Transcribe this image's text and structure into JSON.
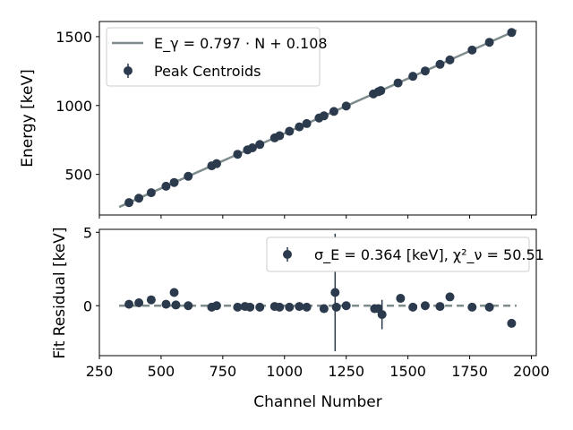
{
  "chart_data": [
    {
      "type": "scatter",
      "ylabel": "Energy [keV]",
      "xlim": [
        250,
        2020
      ],
      "ylim": [
        205,
        1610
      ],
      "xticks": [
        "250",
        "500",
        "750",
        "1000",
        "1250",
        "1500",
        "1750",
        "2000"
      ],
      "yticks": [
        "500",
        "1000",
        "1500"
      ],
      "ytick_values": [
        500,
        1000,
        1500
      ],
      "legend_position": "top-left",
      "legend": {
        "fit_label": "E_γ = 0.797 · N + 0.108",
        "points_label": "Peak Centroids"
      },
      "fit": {
        "slope": 0.797,
        "intercept": 0.108,
        "x_range": [
          330,
          1940
        ]
      },
      "series": [
        {
          "name": "Peak Centroids",
          "x": [
            370,
            410,
            460,
            520,
            553,
            610,
            705,
            725,
            810,
            850,
            870,
            900,
            960,
            980,
            1020,
            1060,
            1090,
            1140,
            1160,
            1200,
            1250,
            1360,
            1380,
            1390,
            1460,
            1520,
            1570,
            1630,
            1670,
            1760,
            1830,
            1920
          ],
          "y": [
            295,
            327,
            367,
            414,
            441,
            486,
            562,
            578,
            646,
            678,
            693,
            717,
            765,
            781,
            813,
            845,
            869,
            909,
            925,
            957,
            996,
            1084,
            1100,
            1108,
            1164,
            1212,
            1251,
            1299,
            1331,
            1403,
            1459,
            1530
          ]
        }
      ],
      "colors": {
        "points": "#2b3a4d",
        "fit": "#7f8c8d"
      }
    },
    {
      "type": "scatter",
      "xlabel": "Channel Number",
      "ylabel": "Fit Residual [keV]",
      "xlim": [
        250,
        2020
      ],
      "ylim": [
        -3.4,
        5.2
      ],
      "yticks": [
        "5",
        "0"
      ],
      "ytick_values": [
        5,
        0
      ],
      "legend_position": "top-right",
      "legend": {
        "points_label": "σ_E = 0.364 [keV], χ²_ν = 50.51"
      },
      "zero_line": {
        "y": 0,
        "x_range": [
          330,
          1940
        ],
        "style": "dashed"
      },
      "series": [
        {
          "name": "σ_E = 0.364 [keV], χ²_ν = 50.51",
          "x": [
            370,
            410,
            460,
            520,
            553,
            560,
            610,
            705,
            725,
            810,
            840,
            860,
            900,
            960,
            980,
            1020,
            1060,
            1090,
            1160,
            1205,
            1210,
            1250,
            1365,
            1380,
            1395,
            1470,
            1520,
            1570,
            1630,
            1670,
            1760,
            1830,
            1920
          ],
          "y": [
            0.1,
            0.2,
            0.4,
            0.1,
            0.9,
            0.05,
            0.0,
            -0.1,
            0.0,
            -0.1,
            -0.05,
            -0.1,
            -0.1,
            -0.05,
            -0.1,
            -0.1,
            -0.05,
            -0.1,
            -0.2,
            0.9,
            -0.1,
            0.0,
            -0.2,
            -0.2,
            -0.6,
            0.5,
            -0.1,
            0.0,
            -0.05,
            0.6,
            -0.1,
            -0.1,
            -1.2
          ],
          "yerr": [
            0.05,
            0.05,
            0.05,
            0.05,
            0.05,
            0.05,
            0.05,
            0.05,
            0.05,
            0.05,
            0.05,
            0.05,
            0.05,
            0.05,
            0.05,
            0.05,
            0.05,
            0.05,
            0.05,
            4.0,
            0.05,
            0.05,
            0.05,
            0.05,
            1.0,
            0.05,
            0.05,
            0.05,
            0.05,
            0.05,
            0.05,
            0.05,
            0.05
          ]
        }
      ],
      "colors": {
        "points": "#2b3a4d",
        "zero_line": "#7f8c8d"
      }
    }
  ]
}
